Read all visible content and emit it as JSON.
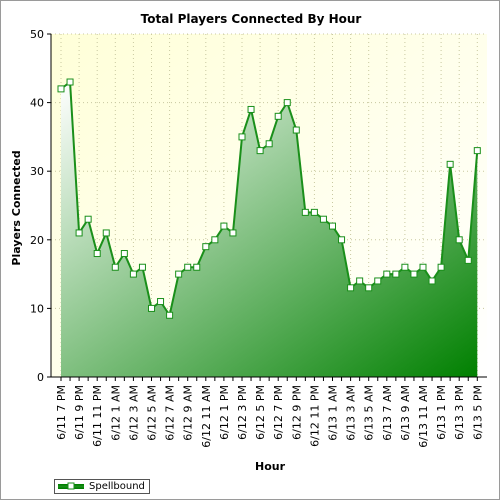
{
  "chart_data": {
    "type": "area",
    "title": "Total Players Connected By Hour",
    "xlabel": "Hour",
    "ylabel": "Players Connected",
    "ylim": [
      0,
      50
    ],
    "yticks": [
      0,
      10,
      20,
      30,
      40,
      50
    ],
    "grid": true,
    "legend": "bottom-left",
    "x_tick_labels": [
      "6/11 7 PM",
      "6/11 9 PM",
      "6/11 11 PM",
      "6/12 1 AM",
      "6/12 3 AM",
      "6/12 5 AM",
      "6/12 7 AM",
      "6/12 9 AM",
      "6/12 11 AM",
      "6/12 1 PM",
      "6/12 3 PM",
      "6/12 5 PM",
      "6/12 7 PM",
      "6/12 9 PM",
      "6/12 11 PM",
      "6/13 1 AM",
      "6/13 3 AM",
      "6/13 5 AM",
      "6/13 7 AM",
      "6/13 9 AM",
      "6/13 11 AM",
      "6/13 1 PM",
      "6/13 3 PM",
      "6/13 5 PM"
    ],
    "series": [
      {
        "name": "Spellbound",
        "color": "#1a8f1a",
        "values": [
          42,
          43,
          21,
          23,
          18,
          21,
          16,
          18,
          15,
          16,
          10,
          11,
          9,
          15,
          16,
          16,
          19,
          20,
          22,
          21,
          35,
          39,
          33,
          34,
          38,
          40,
          36,
          24,
          24,
          23,
          22,
          20,
          13,
          14,
          13,
          14,
          15,
          15,
          16,
          15,
          16,
          14,
          16,
          31,
          20,
          17,
          33
        ]
      }
    ]
  },
  "colors": {
    "plot_bg_top": "#ffffd8",
    "plot_bg_bottom": "#ffffff",
    "area_light": "#ffffff",
    "area_dark": "#008000",
    "line": "#1a8f1a",
    "grid": "#c8c8a0"
  }
}
